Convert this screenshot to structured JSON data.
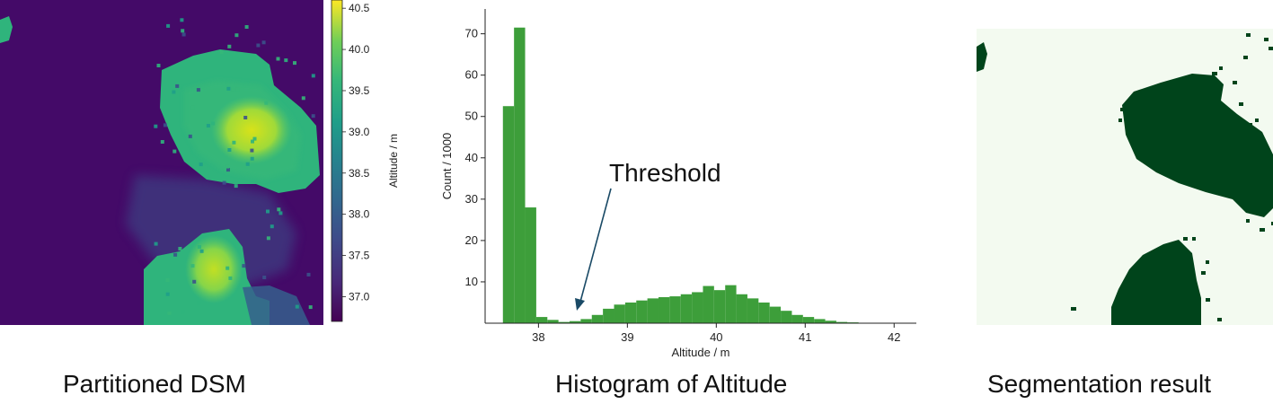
{
  "panels": {
    "dsm": {
      "caption": "Partitioned DSM",
      "colorbar": {
        "label": "Altitude / m",
        "ticks": [
          "37.0",
          "37.5",
          "38.0",
          "38.5",
          "39.0",
          "39.5",
          "40.0",
          "40.5"
        ],
        "range": [
          36.7,
          40.6
        ],
        "colormap": "viridis"
      }
    },
    "histogram": {
      "caption": "Histogram of Altitude",
      "annotation": "Threshold",
      "bar_color": "#3d9e3a",
      "arrow_color": "#1a4a66"
    },
    "segmentation": {
      "caption": "Segmentation result",
      "foreground_color": "#00441b",
      "background_color": "#f3faf0"
    }
  },
  "chart_data": {
    "type": "bar",
    "title": "",
    "xlabel": "Altitude / m",
    "ylabel": "Count / 1000",
    "xlim": [
      37.4,
      42.25
    ],
    "ylim": [
      0,
      76
    ],
    "x_ticks": [
      "38",
      "39",
      "40",
      "41",
      "42"
    ],
    "y_ticks": [
      "10",
      "20",
      "30",
      "40",
      "50",
      "60",
      "70"
    ],
    "bin_width": 0.125,
    "bins_start": [
      37.6,
      37.725,
      37.85,
      37.975,
      38.1,
      38.225,
      38.35,
      38.475,
      38.6,
      38.725,
      38.85,
      38.975,
      39.1,
      39.225,
      39.35,
      39.475,
      39.6,
      39.725,
      39.85,
      39.975,
      40.1,
      40.225,
      40.35,
      40.475,
      40.6,
      40.725,
      40.85,
      40.975,
      41.1,
      41.225,
      41.35,
      41.475,
      41.6,
      41.725
    ],
    "values": [
      52.5,
      71.5,
      28.0,
      1.5,
      0.8,
      0.3,
      0.5,
      1.0,
      2.0,
      3.5,
      4.5,
      5.0,
      5.5,
      6.0,
      6.3,
      6.5,
      7.0,
      7.5,
      9.0,
      8.0,
      9.2,
      7.0,
      6.0,
      5.0,
      4.0,
      3.0,
      2.0,
      1.5,
      1.0,
      0.6,
      0.3,
      0.2,
      0.1,
      0.05
    ]
  }
}
